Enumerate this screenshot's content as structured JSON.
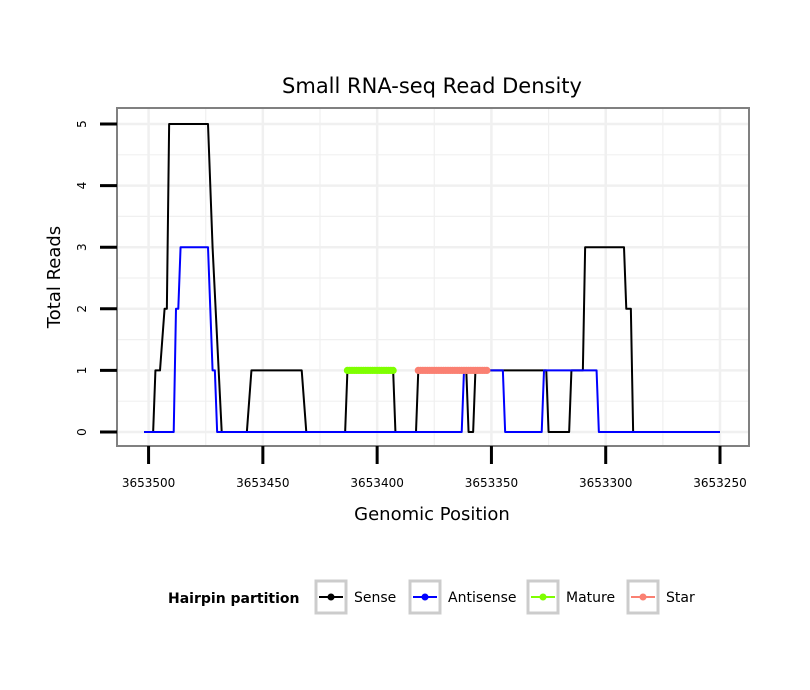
{
  "chart_data": {
    "type": "line",
    "title": "Small RNA-seq Read Density",
    "xlabel": "Genomic Position",
    "ylabel": "Total Reads",
    "xlim": [
      3653502,
      3653250
    ],
    "ylim": [
      0,
      5
    ],
    "x_ticks": [
      3653500,
      3653450,
      3653400,
      3653350,
      3653300,
      3653250
    ],
    "x_tick_labels": [
      "3653500",
      "3653450",
      "3653400",
      "3653350",
      "3653300",
      "3653250"
    ],
    "y_ticks": [
      0,
      1,
      2,
      3,
      4,
      5
    ],
    "y_tick_labels": [
      "0",
      "1",
      "2",
      "3",
      "4",
      "5"
    ],
    "grid": true,
    "legend": {
      "title": "Hairpin partition",
      "position": "bottom",
      "entries": [
        "Sense",
        "Antisense",
        "Mature",
        "Star"
      ]
    },
    "series": [
      {
        "name": "Sense",
        "color": "#000000",
        "x": [
          3653502,
          3653498,
          3653497,
          3653495,
          3653493,
          3653492,
          3653491,
          3653474,
          3653472,
          3653468,
          3653457,
          3653455,
          3653433,
          3653431,
          3653414,
          3653413,
          3653393,
          3653392,
          3653383,
          3653382,
          3653361,
          3653360,
          3653358,
          3653357,
          3653349,
          3653348,
          3653326,
          3653325,
          3653316,
          3653315,
          3653310,
          3653309,
          3653292,
          3653291,
          3653289,
          3653288,
          3653250
        ],
        "y": [
          0,
          0,
          1,
          1,
          2,
          2,
          5,
          5,
          3,
          0,
          0,
          1,
          1,
          0,
          0,
          1,
          1,
          0,
          0,
          1,
          1,
          0,
          0,
          1,
          1,
          1,
          1,
          0,
          0,
          1,
          1,
          3,
          3,
          2,
          2,
          0,
          0
        ]
      },
      {
        "name": "Antisense",
        "color": "#0000ff",
        "x": [
          3653502,
          3653489,
          3653488,
          3653487,
          3653486,
          3653474,
          3653473,
          3653472,
          3653471,
          3653470,
          3653469,
          3653433,
          3653432,
          3653414,
          3653413,
          3653393,
          3653392,
          3653363,
          3653362,
          3653345,
          3653344,
          3653328,
          3653327,
          3653304,
          3653303,
          3653250
        ],
        "y": [
          0,
          0,
          2,
          2,
          3,
          3,
          2,
          1,
          1,
          0,
          0,
          0,
          0,
          0,
          0,
          0,
          0,
          0,
          1,
          1,
          0,
          0,
          1,
          1,
          0,
          0
        ]
      },
      {
        "name": "Mature",
        "color": "#7fff00",
        "x": [
          3653413,
          3653412,
          3653411,
          3653410,
          3653409,
          3653408,
          3653407,
          3653406,
          3653405,
          3653404,
          3653403,
          3653402,
          3653401,
          3653400,
          3653399,
          3653398,
          3653397,
          3653396,
          3653395,
          3653394,
          3653393
        ],
        "y": [
          1,
          1,
          1,
          1,
          1,
          1,
          1,
          1,
          1,
          1,
          1,
          1,
          1,
          1,
          1,
          1,
          1,
          1,
          1,
          1,
          1
        ]
      },
      {
        "name": "Star",
        "color": "#fa8072",
        "x": [
          3653382,
          3653381,
          3653380,
          3653379,
          3653378,
          3653377,
          3653376,
          3653375,
          3653374,
          3653373,
          3653372,
          3653371,
          3653370,
          3653369,
          3653368,
          3653367,
          3653366,
          3653365,
          3653364,
          3653363,
          3653362,
          3653361,
          3653360,
          3653359,
          3653358,
          3653357,
          3653356,
          3653355,
          3653354,
          3653353,
          3653352
        ],
        "y": [
          1,
          1,
          1,
          1,
          1,
          1,
          1,
          1,
          1,
          1,
          1,
          1,
          1,
          1,
          1,
          1,
          1,
          1,
          1,
          1,
          1,
          1,
          1,
          1,
          1,
          1,
          1,
          1,
          1,
          1,
          1
        ]
      }
    ]
  },
  "colors": {
    "panel_border": "#808080",
    "grid": "#f0f0f0",
    "legend_key_border": "#cccccc"
  }
}
